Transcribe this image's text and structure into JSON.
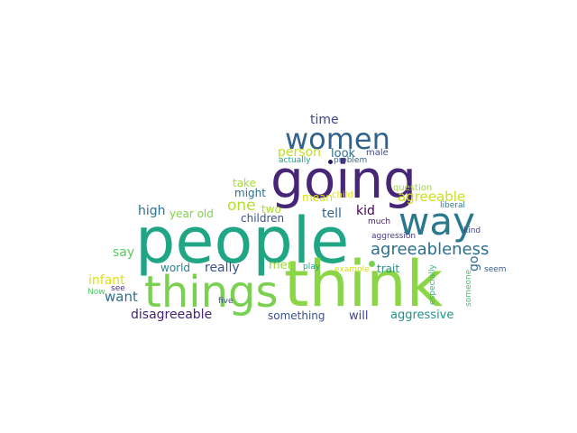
{
  "words": [
    {
      "text": "people",
      "color": "#21a685"
    },
    {
      "text": "think",
      "color": "#8bd646"
    },
    {
      "text": "going",
      "color": "#482677"
    },
    {
      "text": "things",
      "color": "#7ad151"
    },
    {
      "text": "way",
      "color": "#2a788e"
    },
    {
      "text": "women",
      "color": "#33638d"
    },
    {
      "text": "agreeableness",
      "color": "#2d708e"
    },
    {
      "text": "time",
      "color": "#404688"
    },
    {
      "text": "person",
      "color": "#c2df23"
    },
    {
      "text": "look",
      "color": "#2d708e"
    },
    {
      "text": "male",
      "color": "#3e4989"
    },
    {
      "text": "actually",
      "color": "#1fa187"
    },
    {
      "text": "problem",
      "color": "#31688e"
    },
    {
      "text": "take",
      "color": "#a5db36"
    },
    {
      "text": "might",
      "color": "#2e6f8e"
    },
    {
      "text": "mean",
      "color": "#d8e219"
    },
    {
      "text": "child",
      "color": "#dfe318"
    },
    {
      "text": "question",
      "color": "#a2da37"
    },
    {
      "text": "agreeable",
      "color": "#cde11d"
    },
    {
      "text": "liberal",
      "color": "#2a788e"
    },
    {
      "text": "one",
      "color": "#b5de2b"
    },
    {
      "text": "two",
      "color": "#addc30"
    },
    {
      "text": "tell",
      "color": "#33638d"
    },
    {
      "text": "kid",
      "color": "#440154"
    },
    {
      "text": "high",
      "color": "#2c728e"
    },
    {
      "text": "year old",
      "color": "#7fd34e"
    },
    {
      "text": "children",
      "color": "#3b518b"
    },
    {
      "text": "much",
      "color": "#481b6d"
    },
    {
      "text": "aggression",
      "color": "#443983"
    },
    {
      "text": "kind",
      "color": "#3e4a89"
    },
    {
      "text": "say",
      "color": "#5ec962"
    },
    {
      "text": "infant",
      "color": "#dde318"
    },
    {
      "text": "world",
      "color": "#25848e"
    },
    {
      "text": "really",
      "color": "#3b528b"
    },
    {
      "text": "men",
      "color": "#9bd93c"
    },
    {
      "text": "play",
      "color": "#1f9e89"
    },
    {
      "text": "example",
      "color": "#d0e11c"
    },
    {
      "text": "trait",
      "color": "#21918c"
    },
    {
      "text": "go",
      "color": "#31688e"
    },
    {
      "text": "seem",
      "color": "#375b8d"
    },
    {
      "text": "especially",
      "color": "#35b779"
    },
    {
      "text": "want",
      "color": "#2d708e"
    },
    {
      "text": "see",
      "color": "#46327e"
    },
    {
      "text": "Now",
      "color": "#52c569"
    },
    {
      "text": "five",
      "color": "#3e4989"
    },
    {
      "text": "someone",
      "color": "#4ac16d"
    },
    {
      "text": "disagreeable",
      "color": "#482173"
    },
    {
      "text": "something",
      "color": "#3b518b"
    },
    {
      "text": "will",
      "color": "#3f4788"
    },
    {
      "text": "aggressive",
      "color": "#21918c"
    }
  ],
  "dots": [
    {
      "color": "#2a1858"
    },
    {
      "color": "#7ad151"
    }
  ]
}
